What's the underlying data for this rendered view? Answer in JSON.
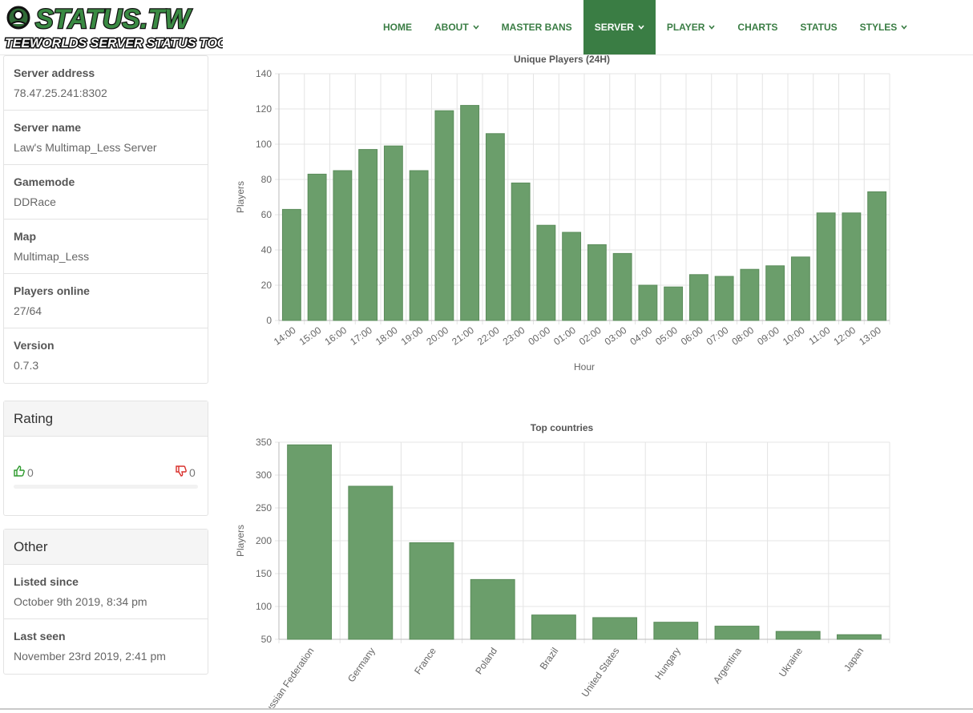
{
  "brand": {
    "logo_text": "STATUS.TW",
    "logo_subtitle": "TEEWORLDS SERVER STATUS TOOL"
  },
  "nav": {
    "items": [
      {
        "label": "HOME",
        "dropdown": false,
        "active": false
      },
      {
        "label": "ABOUT",
        "dropdown": true,
        "active": false
      },
      {
        "label": "MASTER BANS",
        "dropdown": false,
        "active": false
      },
      {
        "label": "SERVER",
        "dropdown": true,
        "active": true
      },
      {
        "label": "PLAYER",
        "dropdown": true,
        "active": false
      },
      {
        "label": "CHARTS",
        "dropdown": false,
        "active": false
      },
      {
        "label": "STATUS",
        "dropdown": false,
        "active": false
      },
      {
        "label": "STYLES",
        "dropdown": true,
        "active": false
      }
    ]
  },
  "server_info": {
    "rows": [
      {
        "label": "Server address",
        "value": "78.47.25.241:8302"
      },
      {
        "label": "Server name",
        "value": "Law's Multimap_Less Server"
      },
      {
        "label": "Gamemode",
        "value": "DDRace"
      },
      {
        "label": "Map",
        "value": "Multimap_Less"
      },
      {
        "label": "Players online",
        "value": "27/64"
      },
      {
        "label": "Version",
        "value": "0.7.3"
      }
    ]
  },
  "rating": {
    "title": "Rating",
    "likes": "0",
    "dislikes": "0",
    "like_color": "#2e9a2e",
    "dislike_color": "#d9302c"
  },
  "other": {
    "title": "Other",
    "rows": [
      {
        "label": "Listed since",
        "value": "October 9th 2019, 8:34 pm"
      },
      {
        "label": "Last seen",
        "value": "November 23rd 2019, 2:41 pm"
      }
    ]
  },
  "colors": {
    "accent": "#3a7d44",
    "bar_fill": "#6b9e6b",
    "bar_stroke": "#5a8c5a"
  },
  "chart_data": [
    {
      "type": "bar",
      "title": "Unique Players (24H)",
      "xlabel": "Hour",
      "ylabel": "Players",
      "ylim": [
        0,
        140
      ],
      "yticks": [
        0,
        20,
        40,
        60,
        80,
        100,
        120,
        140
      ],
      "grid": true,
      "categories": [
        "14:00",
        "15:00",
        "16:00",
        "17:00",
        "18:00",
        "19:00",
        "20:00",
        "21:00",
        "22:00",
        "23:00",
        "00:00",
        "01:00",
        "02:00",
        "03:00",
        "04:00",
        "05:00",
        "06:00",
        "07:00",
        "08:00",
        "09:00",
        "10:00",
        "11:00",
        "12:00",
        "13:00"
      ],
      "values": [
        63,
        83,
        85,
        97,
        99,
        85,
        119,
        122,
        106,
        78,
        54,
        50,
        43,
        38,
        20,
        19,
        26,
        25,
        29,
        31,
        36,
        61,
        61,
        73
      ]
    },
    {
      "type": "bar",
      "title": "Top countries",
      "xlabel": "",
      "ylabel": "Players",
      "ylim": [
        50,
        350
      ],
      "yticks": [
        50,
        100,
        150,
        200,
        250,
        300,
        350
      ],
      "grid": true,
      "categories": [
        "Russian Federation",
        "Germany",
        "France",
        "Poland",
        "Brazil",
        "United States",
        "Hungary",
        "Argentina",
        "Ukraine",
        "Japan"
      ],
      "values": [
        346,
        283,
        197,
        141,
        87,
        83,
        76,
        70,
        62,
        57
      ]
    }
  ]
}
